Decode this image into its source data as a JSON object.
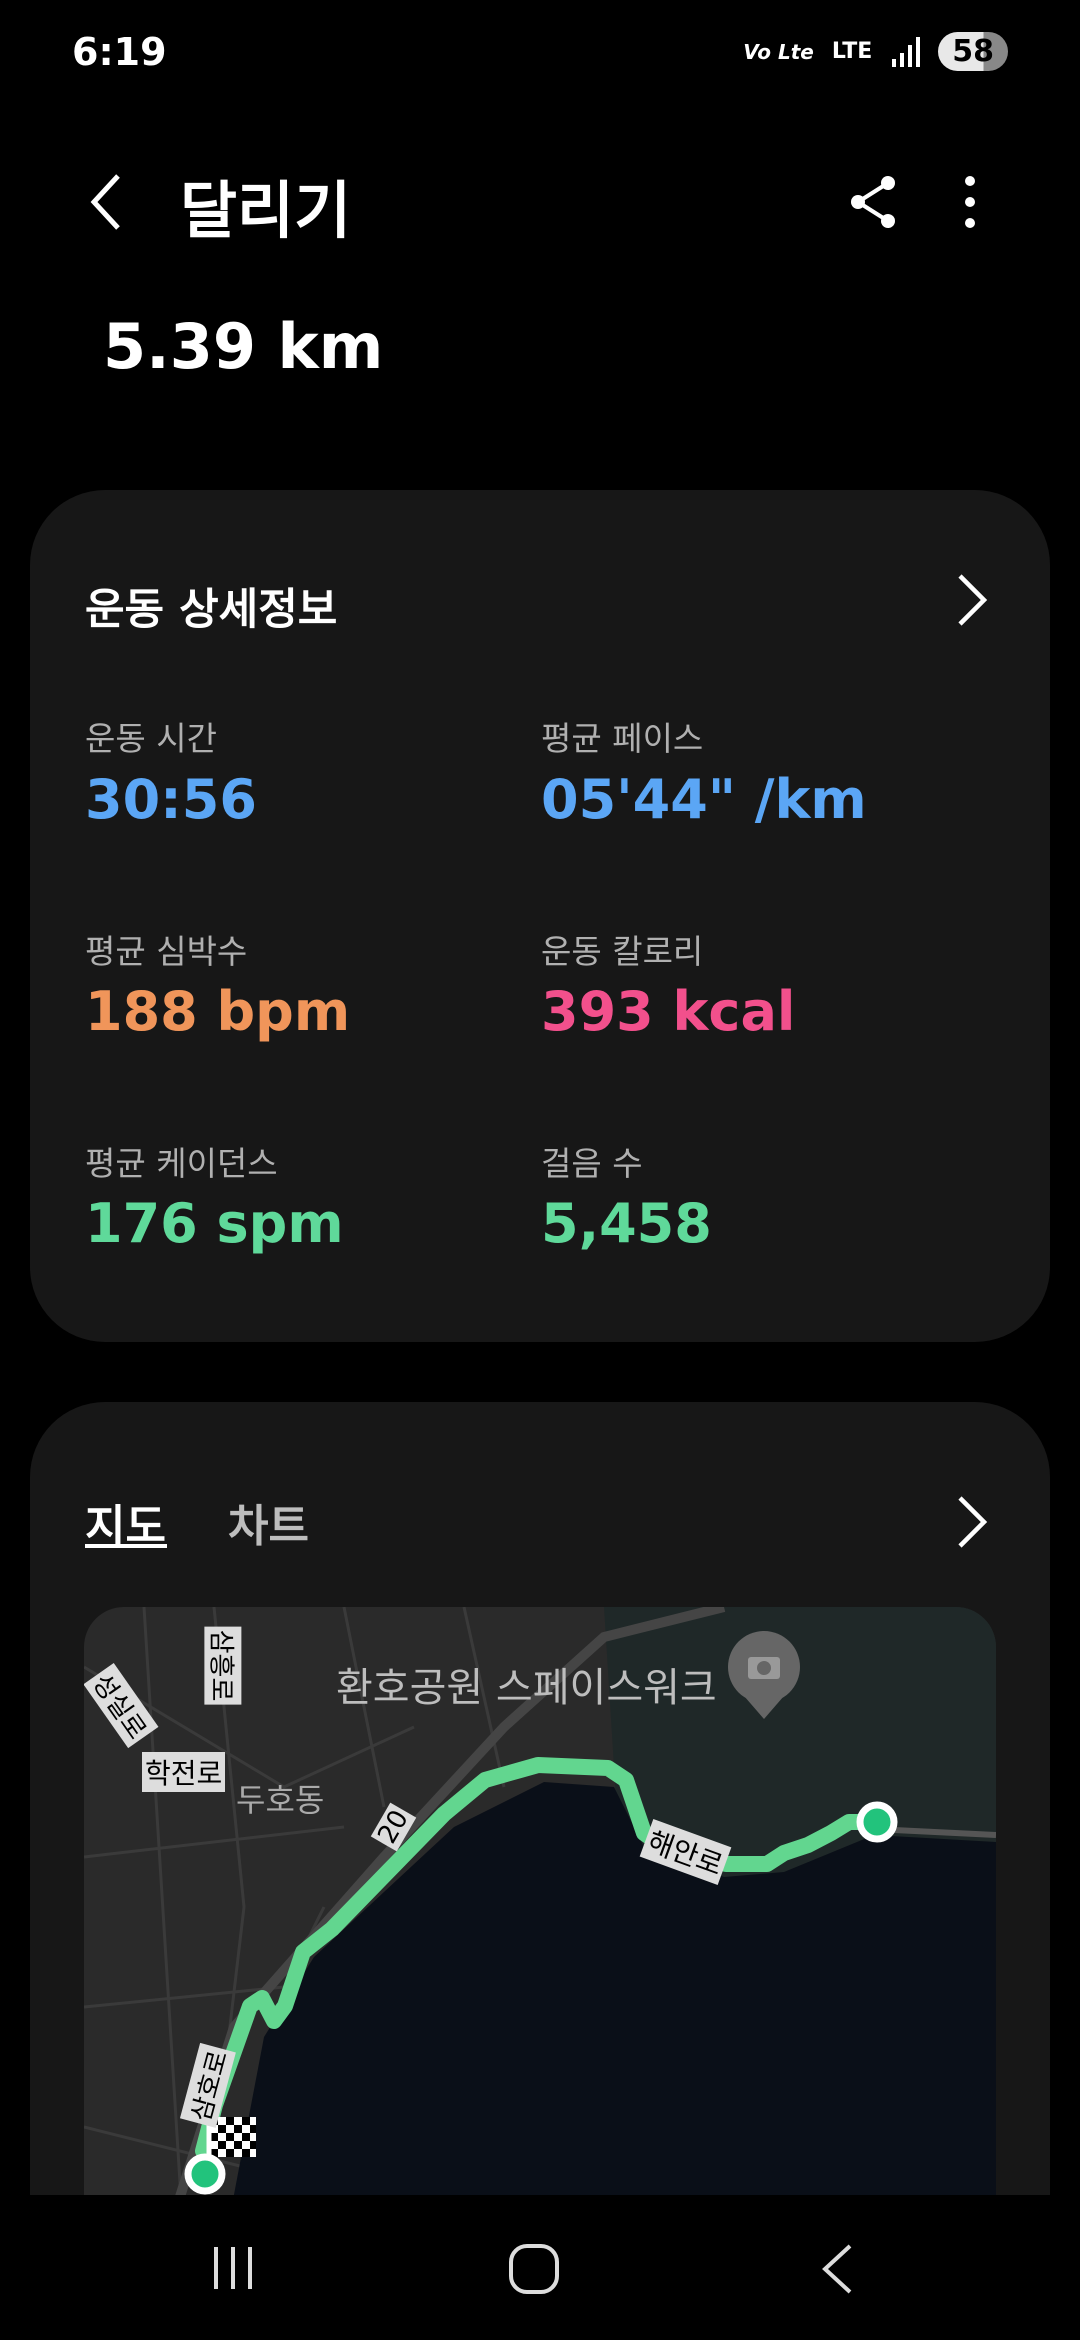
{
  "status_bar": {
    "time": "6:19",
    "volte": "Vo Lte",
    "network": "LTE",
    "battery": "58"
  },
  "header": {
    "title": "달리기",
    "back_icon": "chevron-left-icon",
    "share_icon": "share-icon",
    "more_icon": "more-vertical-icon"
  },
  "summary": {
    "distance": "5.39 km"
  },
  "details": {
    "title": "운동 상세정보",
    "items": [
      {
        "label": "운동 시간",
        "value": "30:56",
        "color": "#5ba6f5"
      },
      {
        "label": "평균 페이스",
        "value": "05'44\" /km",
        "color": "#5ba6f5"
      },
      {
        "label": "평균 심박수",
        "value": "188 bpm",
        "color": "#f0955a"
      },
      {
        "label": "운동 칼로리",
        "value": "393 kcal",
        "color": "#f2508c"
      },
      {
        "label": "평균 케이던스",
        "value": "176 spm",
        "color": "#5fd99a"
      },
      {
        "label": "걸음 수",
        "value": "5,458",
        "color": "#5fd99a"
      }
    ]
  },
  "map_card": {
    "tabs": [
      {
        "label": "지도",
        "active": true
      },
      {
        "label": "차트",
        "active": false
      }
    ],
    "map_labels": {
      "poi": "환호공원 스페이스워크",
      "area": "두호동",
      "road1": "학전로",
      "road2": "해안로",
      "road3": "삼호로",
      "road4": "성실로",
      "road5": "삼흥로",
      "route_no": "20"
    },
    "route_color": "#62d68f"
  },
  "nav": {
    "recents": "recents-icon",
    "home": "home-icon",
    "back": "back-icon"
  }
}
